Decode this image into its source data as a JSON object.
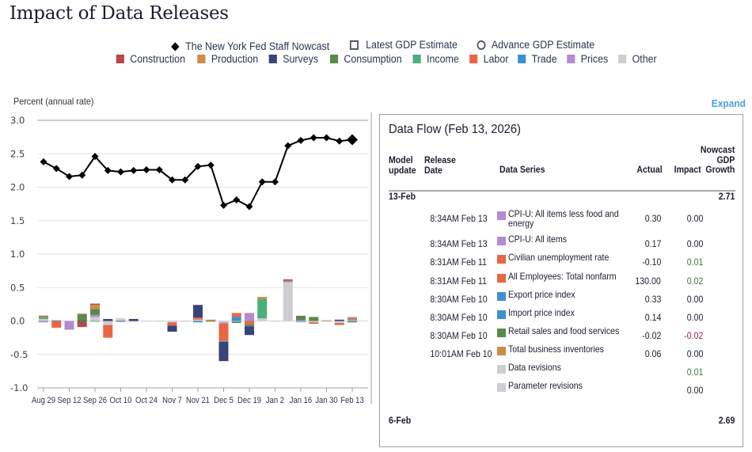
{
  "page": {
    "title": "Impact of Data Releases",
    "expand_label": "Expand"
  },
  "legend": {
    "lines": [
      {
        "label": "The New York Fed Staff Nowcast",
        "marker": "diamond-icon"
      },
      {
        "label": "Latest GDP Estimate",
        "marker": "square-outline-icon"
      },
      {
        "label": "Advance GDP Estimate",
        "marker": "circle-outline-icon"
      }
    ],
    "categories": [
      {
        "label": "Construction",
        "color": "#b5484b"
      },
      {
        "label": "Production",
        "color": "#d18b45"
      },
      {
        "label": "Surveys",
        "color": "#37447a"
      },
      {
        "label": "Consumption",
        "color": "#5a8a4a"
      },
      {
        "label": "Income",
        "color": "#4cae78"
      },
      {
        "label": "Labor",
        "color": "#ea6544"
      },
      {
        "label": "Trade",
        "color": "#3d8fd1"
      },
      {
        "label": "Prices",
        "color": "#b38bd0"
      },
      {
        "label": "Other",
        "color": "#cdcdd2"
      }
    ]
  },
  "chart_data": {
    "type": "bar",
    "subtype": "stacked-bar-with-line",
    "title": "Impact of Data Releases",
    "ylabel": "Percent (annual rate)",
    "xlabel": "",
    "ylim": [
      -1.0,
      3.0
    ],
    "yticks": [
      "3.0",
      "2.5",
      "2.0",
      "1.5",
      "1.0",
      "0.5",
      "0.0",
      "-0.5",
      "-1.0"
    ],
    "ytick_values": [
      3.0,
      2.5,
      2.0,
      1.5,
      1.0,
      0.5,
      0.0,
      -0.5,
      -1.0
    ],
    "xtick_labels": [
      "Aug 29",
      "Sep 12",
      "Sep 26",
      "Oct 10",
      "Oct 24",
      "Nov 7",
      "Nov 21",
      "Dec 5",
      "Dec 19",
      "Jan 2",
      "Jan 16",
      "Jan 30",
      "Feb 13"
    ],
    "grid": true,
    "legend_position": "top",
    "weeks": [
      "Aug 29",
      "Sep 5",
      "Sep 12",
      "Sep 19",
      "Sep 26",
      "Oct 3",
      "Oct 10",
      "Oct 17",
      "Oct 24",
      "Oct 31",
      "Nov 7",
      "Nov 14",
      "Nov 21",
      "Nov 28",
      "Dec 5",
      "Dec 12",
      "Dec 19",
      "Dec 26",
      "Jan 2",
      "Jan 9",
      "Jan 16",
      "Jan 23",
      "Jan 30",
      "Feb 6",
      "Feb 13"
    ],
    "nowcast": {
      "name": "The New York Fed Staff Nowcast",
      "values": [
        2.38,
        2.28,
        2.16,
        2.18,
        2.46,
        2.25,
        2.23,
        2.25,
        2.26,
        2.26,
        2.11,
        2.11,
        2.31,
        2.33,
        1.73,
        1.81,
        1.71,
        2.08,
        2.08,
        2.62,
        2.7,
        2.74,
        2.74,
        2.69,
        2.71
      ]
    },
    "series": [
      {
        "name": "Construction",
        "values": [
          0.01,
          0,
          0,
          -0.08,
          0.02,
          0,
          0,
          0,
          0,
          0,
          0,
          0,
          0,
          0,
          0,
          0,
          0,
          0,
          0,
          0,
          0,
          -0.01,
          0,
          0,
          0
        ]
      },
      {
        "name": "Production",
        "values": [
          0.01,
          0,
          0,
          0.01,
          0.06,
          0,
          0,
          0,
          0,
          0,
          0,
          0,
          0,
          0.02,
          0,
          0,
          0,
          0.03,
          0,
          0,
          0.01,
          0,
          0.01,
          0,
          0.01
        ]
      },
      {
        "name": "Surveys",
        "values": [
          0,
          0,
          0,
          -0.01,
          0,
          0.03,
          -0.01,
          0.03,
          0,
          0,
          -0.09,
          0,
          0.19,
          0,
          -0.29,
          0,
          -0.13,
          0,
          0,
          0.01,
          0.01,
          0,
          0,
          0.02,
          0
        ]
      },
      {
        "name": "Consumption",
        "values": [
          0.01,
          0,
          0,
          0.1,
          0.09,
          0,
          0,
          0,
          0,
          0,
          0,
          0,
          0,
          -0.01,
          0,
          -0.02,
          -0.03,
          0,
          0,
          0,
          0.05,
          0.06,
          0,
          0,
          -0.02
        ]
      },
      {
        "name": "Income",
        "values": [
          0.02,
          0,
          0,
          0,
          -0.01,
          0,
          0,
          0,
          0,
          0,
          0,
          0,
          0,
          0,
          -0.01,
          0,
          0,
          0.29,
          0,
          0,
          0,
          0,
          0,
          0,
          0
        ]
      },
      {
        "name": "Labor",
        "values": [
          0,
          -0.1,
          0,
          0,
          0,
          -0.19,
          0,
          0,
          0,
          0,
          -0.05,
          0,
          0.03,
          0,
          -0.26,
          0.06,
          -0.05,
          0,
          0,
          0.02,
          0,
          -0.01,
          0,
          -0.03,
          0.02
        ]
      },
      {
        "name": "Trade",
        "values": [
          0,
          0.01,
          0,
          0,
          0,
          0,
          0,
          0,
          0,
          0,
          0,
          0,
          -0.02,
          0,
          0,
          0.06,
          0,
          0,
          0,
          0,
          0.01,
          0,
          0,
          0,
          0.01
        ]
      },
      {
        "name": "Prices",
        "values": [
          -0.02,
          0,
          -0.13,
          0,
          0.03,
          0,
          0,
          0,
          0,
          0,
          0,
          0,
          0,
          0,
          -0.02,
          0,
          0.12,
          0,
          0,
          0.01,
          -0.01,
          0,
          0,
          0,
          0.01
        ]
      },
      {
        "name": "Other",
        "values": [
          0.03,
          0,
          0,
          0,
          0.06,
          -0.06,
          0.04,
          -0.01,
          -0.01,
          -0.01,
          -0.02,
          -0.01,
          0.02,
          0,
          -0.02,
          -0.01,
          0,
          0.04,
          -0.01,
          0.58,
          -0.01,
          -0.02,
          -0.01,
          -0.03,
          0.01
        ]
      }
    ]
  },
  "data_flow": {
    "title": "Data Flow (Feb 13, 2026)",
    "headers": {
      "model_update": [
        "Model",
        "update"
      ],
      "release_date": [
        "Release",
        "Date"
      ],
      "data_series": "Data Series",
      "actual": "Actual",
      "impact": "Impact",
      "nowcast": [
        "Nowcast",
        "GDP",
        "Growth"
      ]
    },
    "groups": [
      {
        "model_update": "13-Feb",
        "nowcast": "2.71",
        "rows": [
          {
            "release": "8:34AM Feb 13",
            "series": "CPI-U: All items less food and energy",
            "category": "Prices",
            "actual": "0.30",
            "impact": "0.00",
            "sign": "zero"
          },
          {
            "release": "8:34AM Feb 13",
            "series": "CPI-U: All items",
            "category": "Prices",
            "actual": "0.17",
            "impact": "0.00",
            "sign": "zero"
          },
          {
            "release": "8:31AM Feb 11",
            "series": "Civilian unemployment rate",
            "category": "Labor",
            "actual": "-0.10",
            "impact": "0.01",
            "sign": "pos"
          },
          {
            "release": "8:31AM Feb 11",
            "series": "All Employees: Total nonfarm",
            "category": "Labor",
            "actual": "130.00",
            "impact": "0.02",
            "sign": "pos"
          },
          {
            "release": "8:30AM Feb 10",
            "series": "Export price index",
            "category": "Trade",
            "actual": "0.33",
            "impact": "0.00",
            "sign": "zero"
          },
          {
            "release": "8:30AM Feb 10",
            "series": "Import price index",
            "category": "Trade",
            "actual": "0.14",
            "impact": "0.00",
            "sign": "zero"
          },
          {
            "release": "8:30AM Feb 10",
            "series": "Retail sales and food services",
            "category": "Consumption",
            "actual": "-0.02",
            "impact": "-0.02",
            "sign": "neg"
          },
          {
            "release": "10:01AM Feb 10",
            "series": "Total business inventories",
            "category": "Production",
            "actual": "0.06",
            "impact": "0.00",
            "sign": "zero"
          },
          {
            "release": "",
            "series": "Data revisions",
            "category": "Other",
            "actual": "",
            "impact": "0.01",
            "sign": "pos"
          },
          {
            "release": "",
            "series": "Parameter revisions",
            "category": "Other",
            "actual": "",
            "impact": "0.00",
            "sign": "zero"
          }
        ]
      },
      {
        "model_update": "6-Feb",
        "nowcast": "2.69",
        "rows": []
      }
    ]
  }
}
